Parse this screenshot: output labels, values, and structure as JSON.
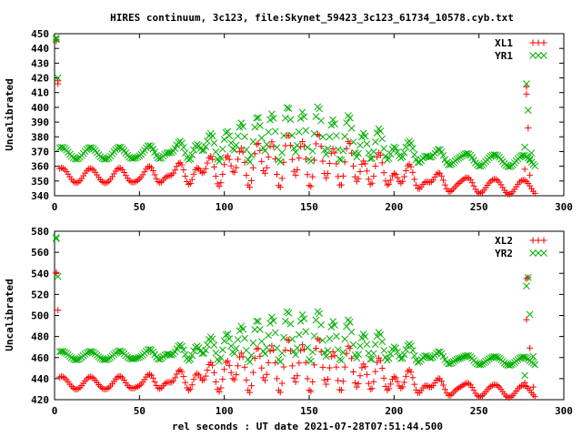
{
  "colors": {
    "series_a": "#ff0000",
    "series_b": "#00b000"
  },
  "chart_data": [
    {
      "type": "scatter",
      "title": "HIRES continuum, 3c123, file:Skynet_59423_3c123_61734_10578.cyb.txt",
      "ylabel": "Uncalibrated",
      "xlabel": "",
      "xlim": [
        0,
        300
      ],
      "ylim": [
        340,
        450
      ],
      "xticks": [
        0,
        50,
        100,
        150,
        200,
        250,
        300
      ],
      "yticks": [
        340,
        350,
        360,
        370,
        380,
        390,
        400,
        410,
        420,
        430,
        440,
        450
      ],
      "legend_position": "top-right",
      "grid": false,
      "series": [
        {
          "name": "XL1",
          "color": "#ff0000",
          "marker": "plus",
          "spikes": [
            [
              1,
              446
            ],
            [
              1,
              445
            ],
            [
              2,
              418
            ],
            [
              2,
              416
            ],
            [
              277,
              358
            ],
            [
              278,
              409
            ],
            [
              278,
              414
            ],
            [
              279,
              386
            ],
            [
              280,
              354
            ]
          ],
          "model": {
            "base": 354,
            "amp": 5,
            "period": 17,
            "phase": 0,
            "slope": -0.03,
            "bump_peak": 384,
            "bump_center": 145,
            "bump_width": 58
          }
        },
        {
          "name": "YR1",
          "color": "#00b000",
          "marker": "cross",
          "spikes": [
            [
              1,
              447
            ],
            [
              1,
              446
            ],
            [
              2,
              420
            ],
            [
              277,
              373
            ],
            [
              278,
              416
            ],
            [
              279,
              398
            ],
            [
              280,
              365
            ],
            [
              281,
              369
            ]
          ],
          "model": {
            "base": 369,
            "amp": 4,
            "period": 17,
            "phase": 0,
            "slope": -0.02,
            "bump_peak": 402,
            "bump_center": 145,
            "bump_width": 55
          }
        }
      ]
    },
    {
      "type": "scatter",
      "title": "",
      "ylabel": "Uncalibrated",
      "xlabel": "rel seconds : UT date 2021-07-28T07:51:44.500",
      "xlim": [
        0,
        300
      ],
      "ylim": [
        420,
        580
      ],
      "xticks": [
        0,
        50,
        100,
        150,
        200,
        250,
        300
      ],
      "yticks": [
        420,
        440,
        460,
        480,
        500,
        520,
        540,
        560,
        580
      ],
      "legend_position": "top-right",
      "grid": false,
      "series": [
        {
          "name": "XL2",
          "color": "#ff0000",
          "marker": "plus",
          "spikes": [
            [
              1,
              541
            ],
            [
              1,
              540
            ],
            [
              2,
              505
            ],
            [
              277,
              436
            ],
            [
              278,
              496
            ],
            [
              278,
              535
            ],
            [
              279,
              536
            ],
            [
              280,
              469
            ],
            [
              282,
              432
            ]
          ],
          "model": {
            "base": 436,
            "amp": 6,
            "period": 17,
            "phase": 0,
            "slope": -0.03,
            "bump_peak": 480,
            "bump_center": 145,
            "bump_width": 58
          }
        },
        {
          "name": "YR2",
          "color": "#00b000",
          "marker": "cross",
          "spikes": [
            [
              1,
              574
            ],
            [
              1,
              573
            ],
            [
              2,
              537
            ],
            [
              277,
              443
            ],
            [
              278,
              528
            ],
            [
              279,
              536
            ],
            [
              280,
              501
            ],
            [
              282,
              461
            ]
          ],
          "model": {
            "base": 462,
            "amp": 4,
            "period": 17,
            "phase": 0,
            "slope": -0.02,
            "bump_peak": 506,
            "bump_center": 145,
            "bump_width": 55
          }
        }
      ]
    }
  ]
}
